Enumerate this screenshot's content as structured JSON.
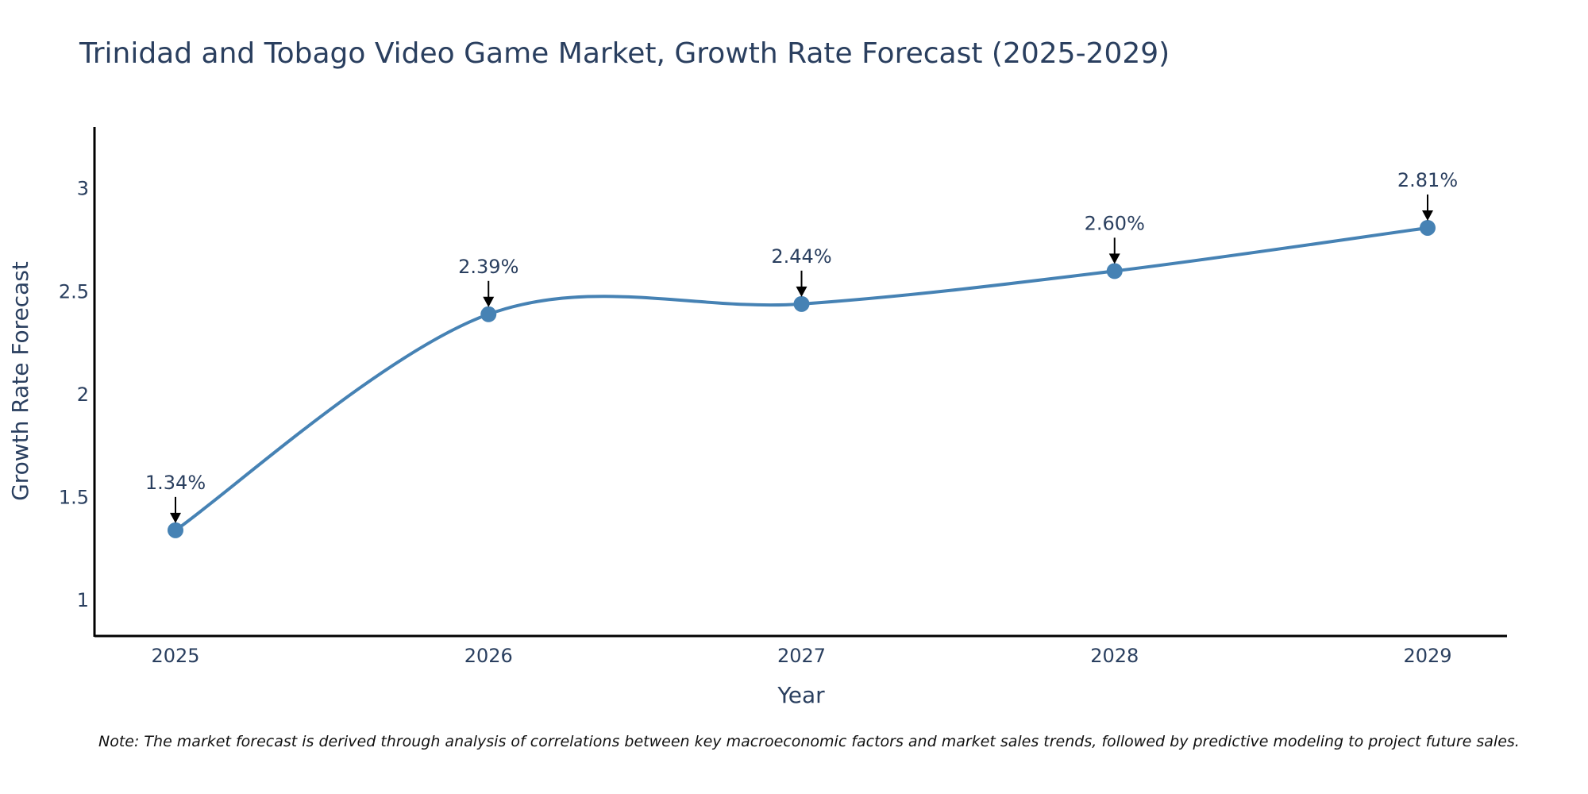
{
  "chart_data": {
    "type": "line",
    "title": "Trinidad and Tobago Video Game Market, Growth Rate Forecast (2025-2029)",
    "xlabel": "Year",
    "ylabel": "Growth Rate Forecast",
    "x": [
      "2025",
      "2026",
      "2027",
      "2028",
      "2029"
    ],
    "values": [
      1.34,
      2.39,
      2.44,
      2.6,
      2.81
    ],
    "data_labels": [
      "1.34%",
      "2.39%",
      "2.44%",
      "2.60%",
      "2.81%"
    ],
    "ylim": [
      0.83,
      3.3
    ],
    "y_ticks": [
      1,
      1.5,
      2,
      2.5,
      3
    ],
    "y_tick_labels": [
      "1",
      "1.5",
      "2",
      "2.5",
      "3"
    ],
    "x_tick_labels": [
      "2025",
      "2026",
      "2027",
      "2028",
      "2029"
    ],
    "grid": false,
    "line_shape": "spline",
    "note": "Note: The market forecast is derived through analysis of correlations between key macroeconomic factors and market sales trends, followed by predictive modeling to project future sales."
  },
  "colors": {
    "line": "#4682b4",
    "marker": "#4682b4",
    "arrow": "#000000",
    "axis": "#000000",
    "text": "#2a3f5f"
  }
}
